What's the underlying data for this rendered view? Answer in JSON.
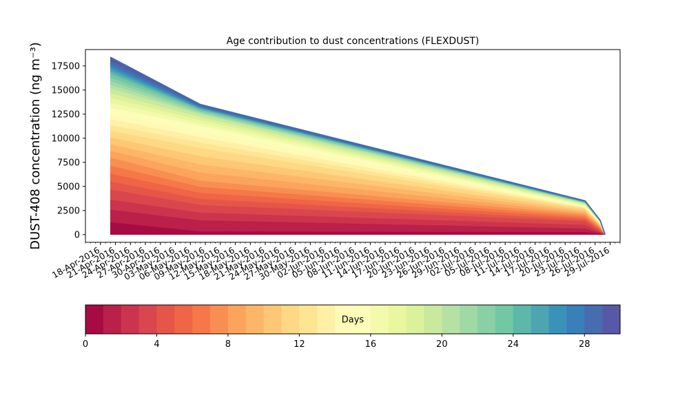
{
  "chart_data": {
    "type": "area",
    "title": "Age contribution to dust concentrations (FLEXDUST)",
    "ylabel": "DUST-408 concentration (ng m⁻³)",
    "xlabel": "",
    "x": [
      "2016-04-20",
      "2016-05-08",
      "2016-07-24",
      "2016-07-27",
      "2016-07-28"
    ],
    "xlim": [
      "2016-04-15",
      "2016-07-31"
    ],
    "ylim": [
      -800,
      19200
    ],
    "yticks": [
      0,
      2500,
      5000,
      7500,
      10000,
      12500,
      15000,
      17500
    ],
    "ytick_labels": [
      "0",
      "2500",
      "5000",
      "7500",
      "10000",
      "12500",
      "15000",
      "17500"
    ],
    "xtick_dates": [
      "2016-04-18",
      "2016-04-21",
      "2016-04-24",
      "2016-04-27",
      "2016-04-30",
      "2016-05-03",
      "2016-05-06",
      "2016-05-09",
      "2016-05-12",
      "2016-05-15",
      "2016-05-18",
      "2016-05-21",
      "2016-05-24",
      "2016-05-27",
      "2016-05-30",
      "2016-06-02",
      "2016-06-05",
      "2016-06-08",
      "2016-06-11",
      "2016-06-14",
      "2016-06-17",
      "2016-06-20",
      "2016-06-23",
      "2016-06-26",
      "2016-06-29",
      "2016-07-02",
      "2016-07-05",
      "2016-07-08",
      "2016-07-11",
      "2016-07-14",
      "2016-07-17",
      "2016-07-20",
      "2016-07-23",
      "2016-07-26",
      "2016-07-29"
    ],
    "xtick_labels": [
      "18-Apr-2016",
      "21-Apr-2016",
      "24-Apr-2016",
      "27-Apr-2016",
      "30-Apr-2016",
      "03-May-2016",
      "06-May-2016",
      "09-May-2016",
      "12-May-2016",
      "15-May-2016",
      "18-May-2016",
      "21-May-2016",
      "24-May-2016",
      "27-May-2016",
      "30-May-2016",
      "02-Jun-2016",
      "05-Jun-2016",
      "08-Jun-2016",
      "11-Jun-2016",
      "14-Jun-2016",
      "17-Jun-2016",
      "20-Jun-2016",
      "23-Jun-2016",
      "26-Jun-2016",
      "29-Jun-2016",
      "02-Jul-2016",
      "05-Jul-2016",
      "08-Jul-2016",
      "11-Jul-2016",
      "14-Jul-2016",
      "17-Jul-2016",
      "20-Jul-2016",
      "23-Jul-2016",
      "26-Jul-2016",
      "29-Jul-2016"
    ],
    "cumulative_anchors": {
      "days": [
        0,
        1,
        2,
        4,
        8,
        12,
        16,
        20,
        24,
        28,
        30
      ],
      "values": [
        [
          0,
          0,
          0,
          0,
          0
        ],
        [
          1300,
          350,
          280,
          100,
          0
        ],
        [
          2600,
          1500,
          650,
          200,
          0
        ],
        [
          4700,
          3100,
          1400,
          400,
          0
        ],
        [
          8000,
          5600,
          2100,
          800,
          0
        ],
        [
          10800,
          9000,
          2700,
          1100,
          0
        ],
        [
          13200,
          11300,
          3000,
          1250,
          0
        ],
        [
          15200,
          12500,
          3250,
          1380,
          0
        ],
        [
          16700,
          13000,
          3380,
          1450,
          0
        ],
        [
          17700,
          13300,
          3440,
          1480,
          0
        ],
        [
          18400,
          13500,
          3500,
          1500,
          0
        ]
      ]
    },
    "outline_color": "#3f6fb0",
    "colormap": "Spectral",
    "colormap_stops": [
      "#9e0142",
      "#d53e4f",
      "#f46d43",
      "#fdae61",
      "#fee08b",
      "#ffffbf",
      "#e6f598",
      "#abdda4",
      "#66c2a5",
      "#3288bd",
      "#5e4fa2"
    ],
    "grid": false,
    "legend": "none",
    "colorbar": {
      "label": "Days",
      "min": 0,
      "max": 30,
      "bins": 30,
      "ticks": [
        0,
        4,
        8,
        12,
        16,
        20,
        24,
        28
      ],
      "tick_labels": [
        "0",
        "4",
        "8",
        "12",
        "16",
        "20",
        "24",
        "28"
      ]
    }
  }
}
